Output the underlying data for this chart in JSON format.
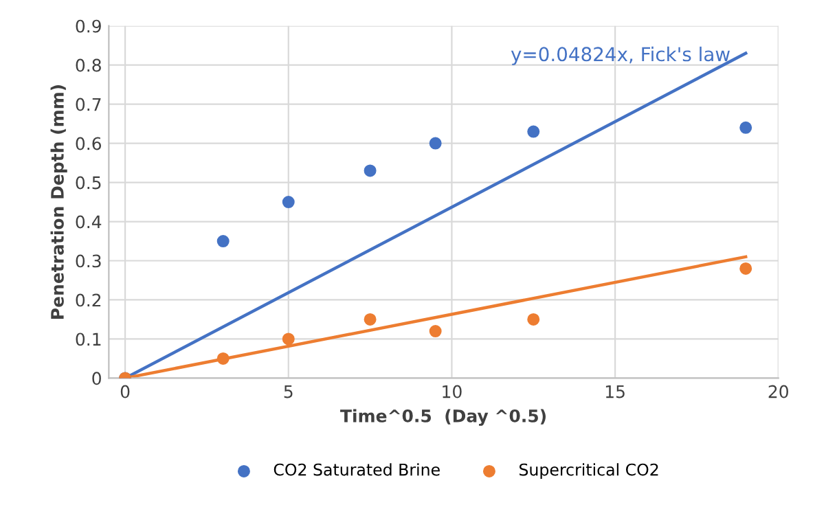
{
  "chart_data": {
    "type": "scatter",
    "xlabel": "Time^0.5  (Day ^0.5)",
    "ylabel": "Penetration Depth (mm)",
    "annotations": [
      "y=0.04824x, Fick's law"
    ],
    "series": [
      {
        "name": "CO2 Saturated Brine",
        "color": "#4472c4",
        "x": [
          0,
          3,
          5,
          7.5,
          9.5,
          12.5,
          19
        ],
        "values": [
          0,
          0.35,
          0.45,
          0.53,
          0.6,
          0.63,
          0.64
        ]
      },
      {
        "name": "Supercritical CO2",
        "color": "#ed7d31",
        "x": [
          0,
          3,
          5,
          7.5,
          9.5,
          12.5,
          19
        ],
        "values": [
          0,
          0.05,
          0.1,
          0.15,
          0.12,
          0.15,
          0.28
        ]
      },
      {
        "color": "#4472c4",
        "type": "line",
        "marker": "none",
        "x": [
          0,
          19
        ],
        "values": [
          0,
          0.83
        ]
      },
      {
        "color": "#ed7d31",
        "type": "line",
        "marker": "none",
        "x": [
          0,
          19
        ],
        "values": [
          0,
          0.31
        ]
      }
    ],
    "xlim": [
      -0.5,
      20
    ],
    "xticks": [
      0,
      5,
      10,
      15,
      20
    ],
    "ylim": [
      0,
      0.9
    ],
    "yticks": [
      0,
      0.1,
      0.2,
      0.3,
      0.4,
      0.5,
      0.6,
      0.7,
      0.8,
      0.9
    ],
    "grid": true,
    "legend": "bottom",
    "marker": "circle"
  }
}
